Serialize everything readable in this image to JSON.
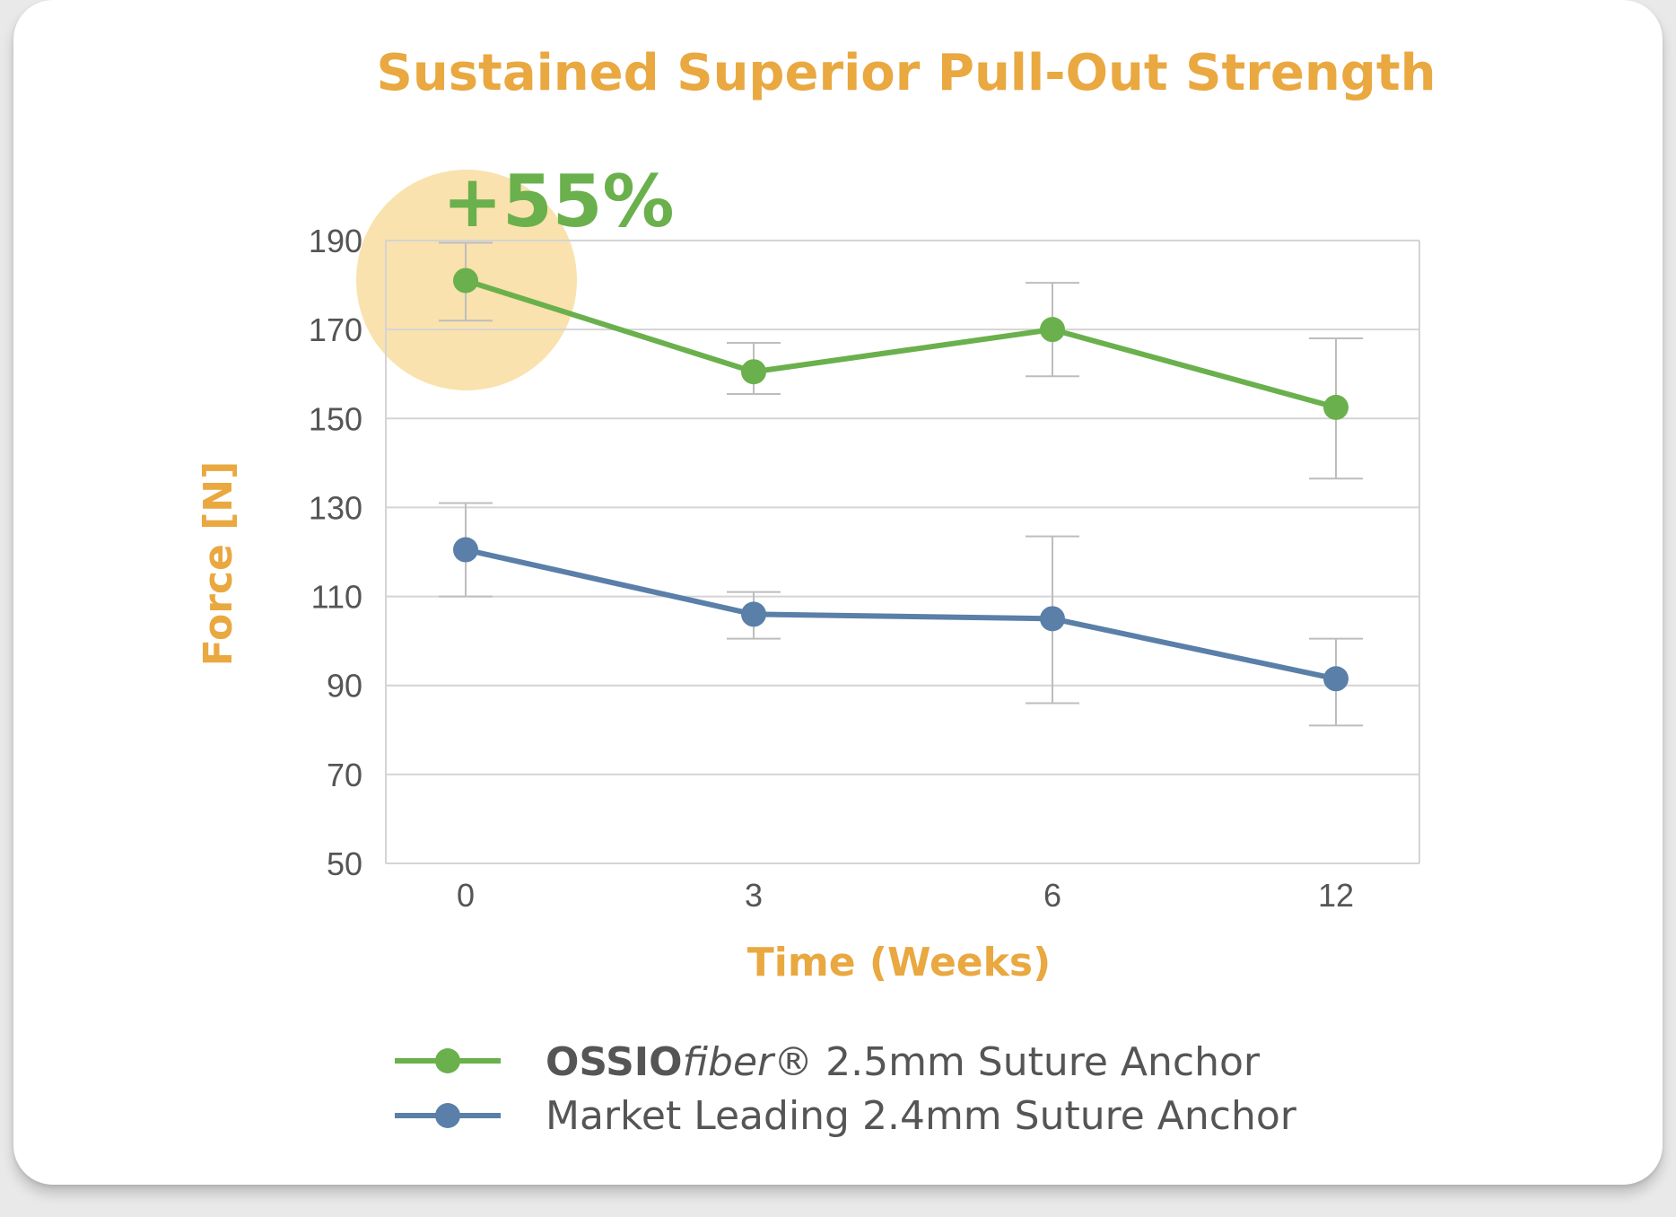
{
  "chart_data": {
    "type": "line",
    "title": "Sustained Superior Pull-Out Strength",
    "xlabel": "Time (Weeks)",
    "ylabel": "Force [N]",
    "categories": [
      "0",
      "3",
      "6",
      "12"
    ],
    "ylim": [
      50,
      190
    ],
    "yticks": [
      50,
      70,
      90,
      110,
      130,
      150,
      170,
      190
    ],
    "grid": "horizontal",
    "legend_placement": "bottom",
    "annotation": "+55%",
    "series": [
      {
        "name_bold": "OSSIO",
        "name_italic": "fiber",
        "name_rest": "® 2.5mm Suture Anchor",
        "color": "#6ab04c",
        "values": [
          181,
          160.5,
          170,
          152.5
        ],
        "err_low": [
          172,
          155.5,
          159.5,
          136.5
        ],
        "err_high": [
          189.5,
          167,
          180.5,
          168
        ]
      },
      {
        "name": "Market Leading 2.4mm Suture Anchor",
        "color": "#5a7fa8",
        "values": [
          120.5,
          106,
          105,
          91.5
        ],
        "err_low": [
          110,
          100.5,
          86,
          81
        ],
        "err_high": [
          131,
          111,
          123.5,
          100.5
        ]
      }
    ],
    "highlight_color": "#f9e2ad",
    "grid_color": "#d4d4d4"
  }
}
